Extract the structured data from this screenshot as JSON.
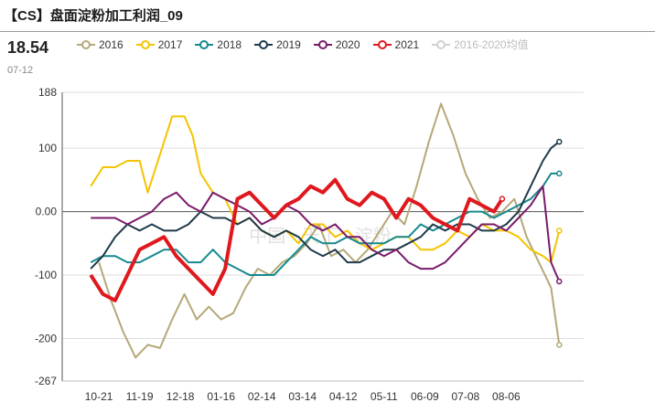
{
  "header": {
    "title": "【CS】盘面淀粉加工利润_09",
    "latest_value": "18.54",
    "latest_date": "07-12"
  },
  "watermark": "中国 · 天下 · 淀粉",
  "chart_data": {
    "type": "line",
    "title": "【CS】盘面淀粉加工利润_09",
    "xlabel": "",
    "ylabel": "",
    "ylim": [
      -267,
      188
    ],
    "yticks": [
      "188",
      "100",
      "0.00",
      "-100",
      "-200",
      "-267"
    ],
    "ytick_values": [
      188,
      100,
      0,
      -100,
      -200,
      -267
    ],
    "categories": [
      "10-21",
      "11-19",
      "12-18",
      "01-16",
      "02-14",
      "03-14",
      "04-12",
      "05-11",
      "06-09",
      "07-08",
      "08-06"
    ],
    "grid": true,
    "legend_position": "top",
    "series": [
      {
        "name": "2016",
        "color": "#b5a878",
        "width": 2,
        "points": [
          [
            0,
            -80
          ],
          [
            0.3,
            -140
          ],
          [
            0.6,
            -190
          ],
          [
            0.9,
            -230
          ],
          [
            1.2,
            -210
          ],
          [
            1.5,
            -215
          ],
          [
            1.8,
            -170
          ],
          [
            2.1,
            -130
          ],
          [
            2.4,
            -170
          ],
          [
            2.7,
            -150
          ],
          [
            3,
            -170
          ],
          [
            3.3,
            -160
          ],
          [
            3.6,
            -120
          ],
          [
            3.9,
            -90
          ],
          [
            4.2,
            -100
          ],
          [
            4.5,
            -80
          ],
          [
            4.8,
            -70
          ],
          [
            5.1,
            -50
          ],
          [
            5.4,
            -20
          ],
          [
            5.7,
            -70
          ],
          [
            6,
            -60
          ],
          [
            6.3,
            -80
          ],
          [
            6.6,
            -60
          ],
          [
            6.9,
            -30
          ],
          [
            7.2,
            0
          ],
          [
            7.5,
            -20
          ],
          [
            7.8,
            40
          ],
          [
            8.1,
            110
          ],
          [
            8.4,
            170
          ],
          [
            8.7,
            120
          ],
          [
            9,
            60
          ],
          [
            9.3,
            20
          ],
          [
            9.6,
            -10
          ],
          [
            9.9,
            0
          ],
          [
            10.2,
            20
          ],
          [
            10.5,
            -40
          ],
          [
            10.8,
            -80
          ],
          [
            11.1,
            -120
          ],
          [
            11.3,
            -210
          ]
        ]
      },
      {
        "name": "2017",
        "color": "#f5c300",
        "width": 2,
        "points": [
          [
            -0.2,
            40
          ],
          [
            0.1,
            70
          ],
          [
            0.4,
            70
          ],
          [
            0.7,
            80
          ],
          [
            1,
            80
          ],
          [
            1.2,
            30
          ],
          [
            1.5,
            90
          ],
          [
            1.8,
            150
          ],
          [
            2.1,
            150
          ],
          [
            2.3,
            120
          ],
          [
            2.5,
            60
          ],
          [
            2.8,
            30
          ],
          [
            3.1,
            20
          ],
          [
            3.4,
            -20
          ],
          [
            3.7,
            -10
          ],
          [
            4,
            -30
          ],
          [
            4.3,
            -40
          ],
          [
            4.6,
            -30
          ],
          [
            4.9,
            -50
          ],
          [
            5.2,
            -20
          ],
          [
            5.5,
            -20
          ],
          [
            5.8,
            -40
          ],
          [
            6.1,
            -30
          ],
          [
            6.4,
            -50
          ],
          [
            6.7,
            -60
          ],
          [
            7,
            -50
          ],
          [
            7.3,
            -40
          ],
          [
            7.6,
            -40
          ],
          [
            7.9,
            -60
          ],
          [
            8.2,
            -60
          ],
          [
            8.5,
            -50
          ],
          [
            8.8,
            -30
          ],
          [
            9.1,
            -40
          ],
          [
            9.4,
            -20
          ],
          [
            9.7,
            -30
          ],
          [
            10,
            -30
          ],
          [
            10.3,
            -40
          ],
          [
            10.6,
            -60
          ],
          [
            10.9,
            -70
          ],
          [
            11.1,
            -80
          ],
          [
            11.3,
            -30
          ]
        ]
      },
      {
        "name": "2018",
        "color": "#16898e",
        "width": 2,
        "points": [
          [
            -0.2,
            -80
          ],
          [
            0.1,
            -70
          ],
          [
            0.4,
            -70
          ],
          [
            0.7,
            -80
          ],
          [
            1,
            -80
          ],
          [
            1.3,
            -70
          ],
          [
            1.6,
            -60
          ],
          [
            1.9,
            -60
          ],
          [
            2.2,
            -80
          ],
          [
            2.5,
            -80
          ],
          [
            2.8,
            -60
          ],
          [
            3.1,
            -80
          ],
          [
            3.4,
            -90
          ],
          [
            3.7,
            -100
          ],
          [
            4,
            -100
          ],
          [
            4.3,
            -100
          ],
          [
            4.6,
            -80
          ],
          [
            4.9,
            -60
          ],
          [
            5.2,
            -40
          ],
          [
            5.5,
            -50
          ],
          [
            5.8,
            -50
          ],
          [
            6.1,
            -40
          ],
          [
            6.4,
            -50
          ],
          [
            6.7,
            -50
          ],
          [
            7,
            -50
          ],
          [
            7.3,
            -40
          ],
          [
            7.6,
            -40
          ],
          [
            7.9,
            -20
          ],
          [
            8.2,
            -30
          ],
          [
            8.5,
            -20
          ],
          [
            8.8,
            -10
          ],
          [
            9.1,
            0
          ],
          [
            9.4,
            0
          ],
          [
            9.7,
            -10
          ],
          [
            10,
            0
          ],
          [
            10.3,
            10
          ],
          [
            10.6,
            20
          ],
          [
            10.9,
            40
          ],
          [
            11.1,
            60
          ],
          [
            11.3,
            60
          ]
        ]
      },
      {
        "name": "2019",
        "color": "#1f3a4a",
        "width": 2,
        "points": [
          [
            -0.2,
            -90
          ],
          [
            0.1,
            -70
          ],
          [
            0.4,
            -40
          ],
          [
            0.7,
            -20
          ],
          [
            1,
            -30
          ],
          [
            1.3,
            -20
          ],
          [
            1.6,
            -30
          ],
          [
            1.9,
            -30
          ],
          [
            2.2,
            -20
          ],
          [
            2.5,
            0
          ],
          [
            2.8,
            -10
          ],
          [
            3.1,
            -10
          ],
          [
            3.4,
            -20
          ],
          [
            3.7,
            -10
          ],
          [
            4,
            -30
          ],
          [
            4.3,
            -40
          ],
          [
            4.6,
            -30
          ],
          [
            4.9,
            -40
          ],
          [
            5.2,
            -60
          ],
          [
            5.5,
            -70
          ],
          [
            5.8,
            -60
          ],
          [
            6.1,
            -80
          ],
          [
            6.4,
            -80
          ],
          [
            6.7,
            -70
          ],
          [
            7,
            -60
          ],
          [
            7.3,
            -60
          ],
          [
            7.6,
            -50
          ],
          [
            7.9,
            -40
          ],
          [
            8.2,
            -20
          ],
          [
            8.5,
            -30
          ],
          [
            8.8,
            -20
          ],
          [
            9.1,
            -20
          ],
          [
            9.4,
            -30
          ],
          [
            9.7,
            -30
          ],
          [
            10,
            -20
          ],
          [
            10.3,
            0
          ],
          [
            10.6,
            40
          ],
          [
            10.9,
            80
          ],
          [
            11.1,
            100
          ],
          [
            11.3,
            110
          ]
        ]
      },
      {
        "name": "2020",
        "color": "#7a1a6a",
        "width": 2,
        "points": [
          [
            -0.2,
            -10
          ],
          [
            0.1,
            -10
          ],
          [
            0.4,
            -10
          ],
          [
            0.7,
            -20
          ],
          [
            1,
            -10
          ],
          [
            1.3,
            0
          ],
          [
            1.6,
            20
          ],
          [
            1.9,
            30
          ],
          [
            2.2,
            10
          ],
          [
            2.5,
            0
          ],
          [
            2.8,
            30
          ],
          [
            3.1,
            20
          ],
          [
            3.4,
            10
          ],
          [
            3.7,
            0
          ],
          [
            4,
            -20
          ],
          [
            4.3,
            -10
          ],
          [
            4.6,
            10
          ],
          [
            4.9,
            0
          ],
          [
            5.2,
            -20
          ],
          [
            5.5,
            -30
          ],
          [
            5.8,
            -20
          ],
          [
            6.1,
            -40
          ],
          [
            6.4,
            -40
          ],
          [
            6.7,
            -60
          ],
          [
            7,
            -70
          ],
          [
            7.3,
            -60
          ],
          [
            7.6,
            -80
          ],
          [
            7.9,
            -90
          ],
          [
            8.2,
            -90
          ],
          [
            8.5,
            -80
          ],
          [
            8.8,
            -60
          ],
          [
            9.1,
            -40
          ],
          [
            9.4,
            -20
          ],
          [
            9.7,
            -20
          ],
          [
            10,
            -30
          ],
          [
            10.3,
            -10
          ],
          [
            10.6,
            10
          ],
          [
            10.9,
            40
          ],
          [
            11.1,
            -80
          ],
          [
            11.3,
            -110
          ]
        ]
      },
      {
        "name": "2021",
        "color": "#e0181e",
        "width": 4,
        "points": [
          [
            -0.2,
            -100
          ],
          [
            0.1,
            -130
          ],
          [
            0.4,
            -140
          ],
          [
            0.7,
            -100
          ],
          [
            1,
            -60
          ],
          [
            1.3,
            -50
          ],
          [
            1.6,
            -40
          ],
          [
            1.9,
            -70
          ],
          [
            2.2,
            -90
          ],
          [
            2.5,
            -110
          ],
          [
            2.8,
            -130
          ],
          [
            3.1,
            -90
          ],
          [
            3.4,
            20
          ],
          [
            3.7,
            30
          ],
          [
            4,
            10
          ],
          [
            4.3,
            -10
          ],
          [
            4.6,
            10
          ],
          [
            4.9,
            20
          ],
          [
            5.2,
            40
          ],
          [
            5.5,
            30
          ],
          [
            5.8,
            50
          ],
          [
            6.1,
            20
          ],
          [
            6.4,
            10
          ],
          [
            6.7,
            30
          ],
          [
            7,
            20
          ],
          [
            7.3,
            -10
          ],
          [
            7.6,
            20
          ],
          [
            7.9,
            10
          ],
          [
            8.2,
            -10
          ],
          [
            8.5,
            -20
          ],
          [
            8.8,
            -30
          ],
          [
            9.1,
            20
          ],
          [
            9.4,
            10
          ],
          [
            9.7,
            0
          ],
          [
            9.9,
            20
          ]
        ]
      },
      {
        "name": "2016-2020均值",
        "color": "#d0d0d0",
        "width": 1,
        "faded": true,
        "points": []
      }
    ]
  }
}
